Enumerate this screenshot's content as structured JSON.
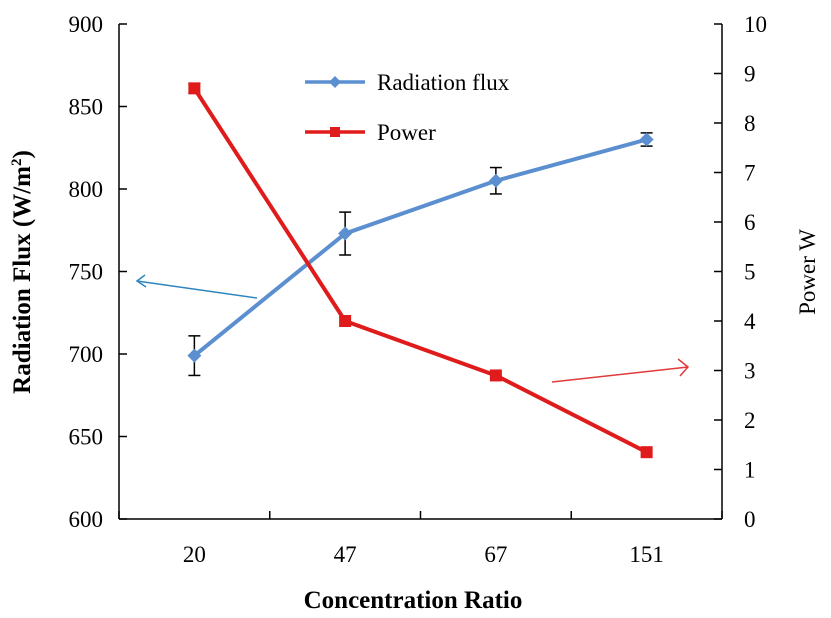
{
  "chart_data": {
    "type": "line",
    "categories": [
      "20",
      "47",
      "67",
      "151"
    ],
    "xlabel": "Concentration Ratio",
    "ylabel": "Radiation Flux (W/m²)",
    "ylabel_main": "Radiation Flux (W/m",
    "ylabel_sup": "2",
    "ylabel_close": ")",
    "y2label": "Power W",
    "ylim": [
      600,
      900
    ],
    "yticks": [
      "600",
      "650",
      "700",
      "750",
      "800",
      "850",
      "900"
    ],
    "y2lim": [
      0,
      10
    ],
    "y2ticks": [
      "0",
      "1",
      "2",
      "3",
      "4",
      "5",
      "6",
      "7",
      "8",
      "9",
      "10"
    ],
    "grid": false,
    "legend_position": "top-center",
    "series": [
      {
        "name": "Radiation flux",
        "axis": "left",
        "color": "#5b8fcf",
        "marker": "diamond",
        "values": [
          699,
          773,
          805,
          830
        ],
        "errors": [
          12,
          13,
          8,
          4
        ]
      },
      {
        "name": "Power",
        "axis": "right",
        "color": "#e01b1b",
        "marker": "square",
        "values": [
          8.7,
          4.0,
          2.9,
          1.35
        ],
        "errors": [
          0.1,
          0,
          0,
          0
        ]
      }
    ],
    "annotations": [
      {
        "type": "arrow",
        "points_to": "left-axis",
        "color": "#2e86c1"
      },
      {
        "type": "arrow",
        "points_to": "right-axis",
        "color": "#e03a3a"
      }
    ]
  }
}
